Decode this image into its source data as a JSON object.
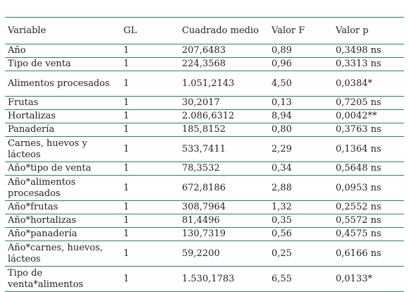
{
  "table": {
    "headers": [
      "Variable",
      "GL",
      "Cuadrado medio",
      "Valor F",
      "Valor p"
    ],
    "rows": [
      [
        "Año",
        "1",
        "207,6483",
        "0,89",
        "0,3498 ns"
      ],
      [
        "Tipo de venta",
        "1",
        "224,3568",
        "0,96",
        "0,3313 ns"
      ],
      [
        "Alimentos procesados",
        "1",
        "1.051,2143",
        "4,50",
        "0,0384*"
      ],
      [
        "Frutas",
        "1",
        "30,2017",
        "0,13",
        "0,7205 ns"
      ],
      [
        "Hortalizas",
        "1",
        "2.086,6312",
        "8,94",
        "0,0042**"
      ],
      [
        "Panadería",
        "1",
        "185,8152",
        "0,80",
        "0,3763 ns"
      ],
      [
        "Carnes, huevos y lácteos",
        "1",
        "533,7411",
        "2,29",
        "0,1364 ns"
      ],
      [
        "Año*tipo de venta",
        "1",
        "78,3532",
        "0,34",
        "0,5648 ns"
      ],
      [
        "Año*alimentos procesados",
        "1",
        "672,8186",
        "2,88",
        "0,0953 ns"
      ],
      [
        "Año*frutas",
        "1",
        "308,7964",
        "1,32",
        "0,2552 ns"
      ],
      [
        "Año*hortalizas",
        "1",
        "81,4496",
        "0,35",
        "0,5572 ns"
      ],
      [
        "Año*panadería",
        "1",
        "130,7319",
        "0,56",
        "0,4575 ns"
      ],
      [
        "Año*carnes, huevos, lácteos",
        "1",
        "59,2200",
        "0,25",
        "0,6166 ns"
      ],
      [
        "Tipo de venta*alimentos",
        "1",
        "1.530,1783",
        "6,55",
        "0,0133*"
      ]
    ]
  }
}
